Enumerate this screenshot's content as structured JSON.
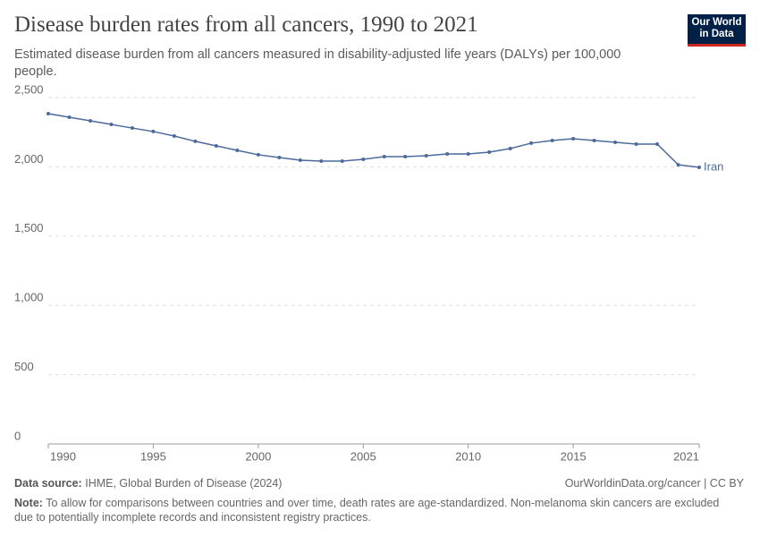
{
  "chart_data": {
    "type": "line",
    "title": "Disease burden rates from all cancers, 1990 to 2021",
    "subtitle": "Estimated disease burden from all cancers measured in disability-adjusted life years (DALYs) per 100,000 people.",
    "x": [
      1990,
      1991,
      1992,
      1993,
      1994,
      1995,
      1996,
      1997,
      1998,
      1999,
      2000,
      2001,
      2002,
      2003,
      2004,
      2005,
      2006,
      2007,
      2008,
      2009,
      2010,
      2011,
      2012,
      2013,
      2014,
      2015,
      2016,
      2017,
      2018,
      2019,
      2020,
      2021
    ],
    "series": [
      {
        "name": "Iran",
        "color": "#4c6a9c",
        "values": [
          2384,
          2358,
          2332,
          2306,
          2280,
          2255,
          2222,
          2184,
          2151,
          2119,
          2087,
          2067,
          2048,
          2041,
          2041,
          2054,
          2074,
          2074,
          2080,
          2093,
          2093,
          2106,
          2132,
          2171,
          2190,
          2203,
          2190,
          2177,
          2164,
          2164,
          2015,
          1996
        ]
      }
    ],
    "xlim": [
      1990,
      2021
    ],
    "xticks": [
      1990,
      1995,
      2000,
      2005,
      2010,
      2015,
      2021
    ],
    "ylim": [
      0,
      2500
    ],
    "yticks": [
      0,
      500,
      {
        "value": 1000,
        "label": "1,000"
      },
      {
        "value": 1500,
        "label": "1,500"
      },
      {
        "value": 2000,
        "label": "2,000"
      },
      {
        "value": 2500,
        "label": "2,500"
      }
    ],
    "grid": true
  },
  "logo": {
    "line1": "Our World",
    "line2": "in Data"
  },
  "footer": {
    "source_label": "Data source:",
    "source": "IHME, Global Burden of Disease (2024)",
    "url": "OurWorldinData.org/cancer | CC BY",
    "note_label": "Note:",
    "note": "To allow for comparisons between countries and over time, death rates are age-standardized. Non-melanoma skin cancers are excluded due to potentially incomplete records and inconsistent registry practices."
  }
}
